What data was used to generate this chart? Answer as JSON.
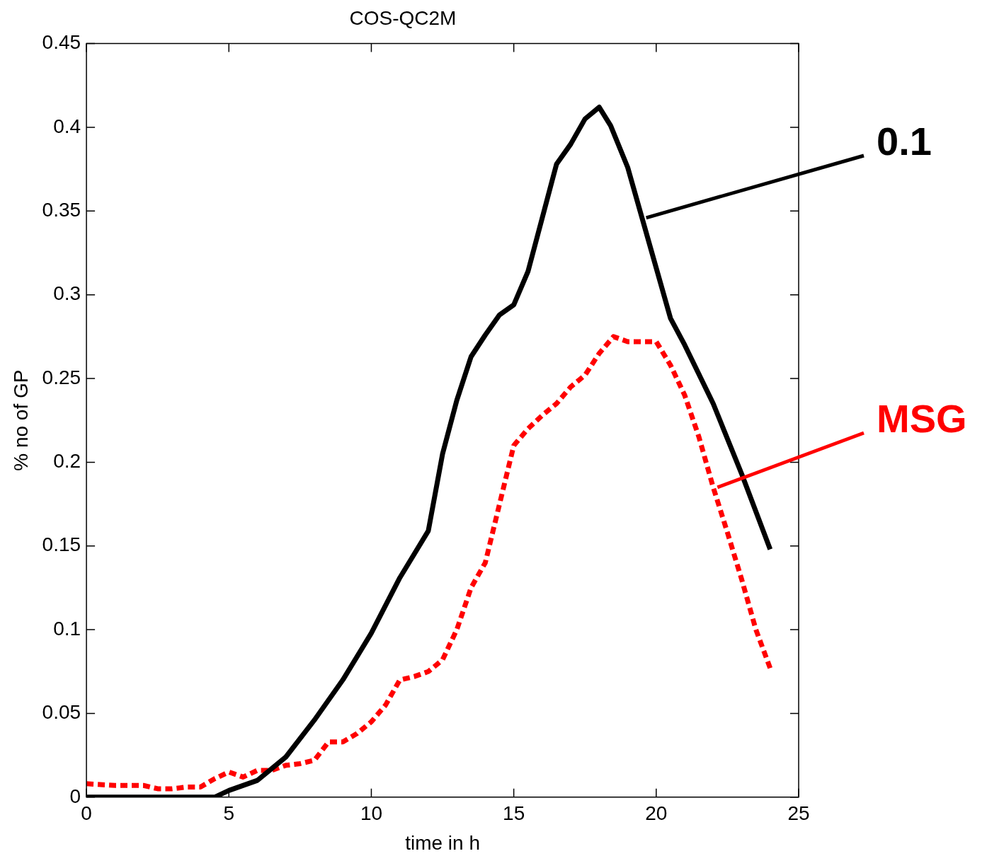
{
  "chart_data": {
    "type": "line",
    "title": "COS-QC2M",
    "xlabel": "time in h",
    "ylabel": "% no of GP",
    "xlim": [
      0,
      25
    ],
    "xticks": [
      0,
      5,
      10,
      15,
      20,
      25
    ],
    "ylim": [
      0,
      0.45
    ],
    "yticks": [
      0,
      0.05,
      0.1,
      0.15,
      0.2,
      0.25,
      0.3,
      0.35,
      0.4,
      0.45
    ],
    "grid": false,
    "marker": "none",
    "series": [
      {
        "name": "0.1",
        "color": "#000000",
        "line_style": "solid",
        "x": [
          0,
          1,
          2,
          3,
          4,
          4.5,
          5,
          6,
          7,
          8,
          9,
          10,
          11,
          12,
          12.5,
          13,
          13.5,
          14,
          14.5,
          15,
          15.5,
          16,
          16.5,
          17,
          17.5,
          18,
          18.4,
          19,
          19.5,
          20,
          20.5,
          21,
          22,
          23,
          24
        ],
        "values": [
          0,
          0,
          0,
          0,
          0,
          0,
          0.004,
          0.01,
          0.024,
          0.046,
          0.07,
          0.098,
          0.131,
          0.159,
          0.205,
          0.237,
          0.263,
          0.276,
          0.288,
          0.294,
          0.314,
          0.346,
          0.378,
          0.39,
          0.405,
          0.412,
          0.401,
          0.376,
          0.346,
          0.316,
          0.286,
          0.27,
          0.235,
          0.193,
          0.148
        ]
      },
      {
        "name": "MSG",
        "color": "#ff0000",
        "line_style": "dashed",
        "x": [
          0,
          1,
          2,
          2.5,
          3,
          3.5,
          4,
          4.5,
          5,
          5.5,
          6,
          6.5,
          7,
          7.5,
          8,
          8.5,
          9,
          9.5,
          10,
          10.5,
          11,
          11.5,
          12,
          12.5,
          13,
          13.5,
          14,
          14.5,
          15,
          15.5,
          16,
          16.5,
          17,
          17.5,
          18,
          18.5,
          19,
          19.5,
          20,
          20.5,
          21,
          21.5,
          22,
          22.5,
          23,
          23.5,
          24
        ],
        "values": [
          0.008,
          0.007,
          0.007,
          0.005,
          0.005,
          0.006,
          0.006,
          0.011,
          0.015,
          0.012,
          0.016,
          0.016,
          0.019,
          0.02,
          0.022,
          0.033,
          0.033,
          0.038,
          0.045,
          0.055,
          0.07,
          0.072,
          0.075,
          0.082,
          0.1,
          0.125,
          0.14,
          0.175,
          0.21,
          0.22,
          0.228,
          0.235,
          0.245,
          0.252,
          0.265,
          0.275,
          0.272,
          0.272,
          0.272,
          0.258,
          0.24,
          0.215,
          0.185,
          0.158,
          0.13,
          0.1,
          0.077
        ]
      }
    ]
  }
}
